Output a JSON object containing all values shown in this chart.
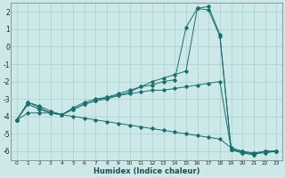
{
  "xlabel": "Humidex (Indice chaleur)",
  "ylabel": "",
  "background_color": "#cce8e8",
  "grid_color": "#aacfcf",
  "line_color": "#1a6e6e",
  "xlim": [
    -0.5,
    23.5
  ],
  "ylim": [
    -6.5,
    2.5
  ],
  "yticks": [
    2,
    1,
    0,
    -1,
    -2,
    -3,
    -4,
    -5,
    -6
  ],
  "xticks": [
    0,
    1,
    2,
    3,
    4,
    5,
    6,
    7,
    8,
    9,
    10,
    11,
    12,
    13,
    14,
    15,
    16,
    17,
    18,
    19,
    20,
    21,
    22,
    23
  ],
  "series": [
    {
      "x": [
        0,
        1,
        2,
        3,
        4,
        5,
        6,
        7,
        8,
        9,
        10,
        11,
        12,
        13,
        14,
        15,
        16,
        17,
        18,
        19,
        20,
        21,
        22,
        23
      ],
      "y": [
        -4.2,
        -3.8,
        -3.8,
        -3.8,
        -3.9,
        -4.0,
        -4.1,
        -4.2,
        -4.3,
        -4.4,
        -4.5,
        -4.6,
        -4.7,
        -4.8,
        -4.9,
        -5.0,
        -5.1,
        -5.2,
        -5.3,
        -5.8,
        -6.0,
        -6.1,
        -6.0,
        -6.0
      ]
    },
    {
      "x": [
        0,
        1,
        2,
        3,
        4,
        5,
        6,
        7,
        8,
        9,
        10,
        11,
        12,
        13,
        14,
        15,
        16,
        17,
        18,
        19,
        20,
        21,
        22,
        23
      ],
      "y": [
        -4.2,
        -3.3,
        -3.6,
        -3.8,
        -3.9,
        -3.5,
        -3.2,
        -3.0,
        -2.9,
        -2.8,
        -2.7,
        -2.6,
        -2.5,
        -2.5,
        -2.4,
        -2.3,
        -2.2,
        -2.1,
        -2.0,
        -5.9,
        -6.1,
        -6.1,
        -6.1,
        -6.0
      ]
    },
    {
      "x": [
        0,
        1,
        2,
        3,
        4,
        5,
        6,
        7,
        8,
        9,
        10,
        11,
        12,
        13,
        14,
        15,
        16,
        17,
        18,
        19,
        20,
        21,
        22,
        23
      ],
      "y": [
        -4.2,
        -3.2,
        -3.5,
        -3.8,
        -3.9,
        -3.6,
        -3.3,
        -3.1,
        -3.0,
        -2.8,
        -2.6,
        -2.3,
        -2.2,
        -2.0,
        -1.9,
        1.1,
        2.2,
        2.1,
        0.6,
        -5.9,
        -6.1,
        -6.2,
        -6.0,
        -6.0
      ]
    },
    {
      "x": [
        0,
        1,
        2,
        3,
        4,
        5,
        6,
        7,
        8,
        9,
        10,
        11,
        12,
        13,
        14,
        15,
        16,
        17,
        18,
        19,
        20,
        21,
        22,
        23
      ],
      "y": [
        -4.2,
        -3.2,
        -3.4,
        -3.7,
        -3.9,
        -3.6,
        -3.3,
        -3.1,
        -2.9,
        -2.7,
        -2.5,
        -2.3,
        -2.0,
        -1.8,
        -1.6,
        -1.4,
        2.2,
        2.3,
        0.7,
        -5.9,
        -6.0,
        -6.2,
        -6.0,
        -6.0
      ]
    }
  ]
}
